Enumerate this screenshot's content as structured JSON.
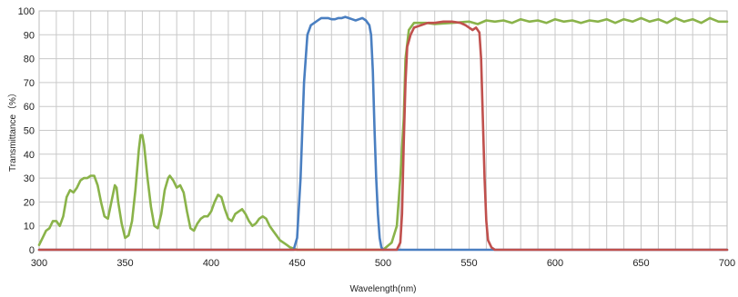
{
  "chart_data": {
    "type": "line",
    "xlabel": "Wavelength(nm)",
    "ylabel": "Transmittance（%）",
    "xlim": [
      300,
      700
    ],
    "ylim": [
      0,
      100
    ],
    "x_ticks": [
      300,
      350,
      400,
      450,
      500,
      550,
      600,
      650,
      700
    ],
    "y_ticks": [
      0,
      10,
      20,
      30,
      40,
      50,
      60,
      70,
      80,
      90,
      100
    ],
    "grid": true,
    "legend": "none",
    "series": [
      {
        "color": "#8ab34a",
        "points": [
          [
            300,
            2
          ],
          [
            302,
            5
          ],
          [
            304,
            8
          ],
          [
            306,
            9
          ],
          [
            308,
            12
          ],
          [
            310,
            12
          ],
          [
            312,
            10
          ],
          [
            314,
            14
          ],
          [
            316,
            22
          ],
          [
            318,
            25
          ],
          [
            320,
            24
          ],
          [
            322,
            26
          ],
          [
            324,
            29
          ],
          [
            326,
            30
          ],
          [
            328,
            30
          ],
          [
            330,
            31
          ],
          [
            332,
            31
          ],
          [
            334,
            27
          ],
          [
            336,
            20
          ],
          [
            338,
            14
          ],
          [
            340,
            13
          ],
          [
            342,
            20
          ],
          [
            344,
            27
          ],
          [
            345,
            26
          ],
          [
            346,
            20
          ],
          [
            348,
            11
          ],
          [
            350,
            5
          ],
          [
            352,
            6
          ],
          [
            354,
            12
          ],
          [
            356,
            25
          ],
          [
            358,
            42
          ],
          [
            359,
            48
          ],
          [
            360,
            48
          ],
          [
            361,
            44
          ],
          [
            363,
            30
          ],
          [
            365,
            18
          ],
          [
            367,
            10
          ],
          [
            369,
            9
          ],
          [
            371,
            15
          ],
          [
            373,
            25
          ],
          [
            375,
            30
          ],
          [
            376,
            31
          ],
          [
            378,
            29
          ],
          [
            380,
            26
          ],
          [
            382,
            27
          ],
          [
            384,
            24
          ],
          [
            386,
            16
          ],
          [
            388,
            9
          ],
          [
            390,
            8
          ],
          [
            392,
            11
          ],
          [
            394,
            13
          ],
          [
            396,
            14
          ],
          [
            398,
            14
          ],
          [
            400,
            16
          ],
          [
            402,
            20
          ],
          [
            404,
            23
          ],
          [
            406,
            22
          ],
          [
            408,
            17
          ],
          [
            410,
            13
          ],
          [
            412,
            12
          ],
          [
            414,
            15
          ],
          [
            416,
            16
          ],
          [
            418,
            17
          ],
          [
            420,
            15
          ],
          [
            422,
            12
          ],
          [
            424,
            10
          ],
          [
            426,
            11
          ],
          [
            428,
            13
          ],
          [
            430,
            14
          ],
          [
            432,
            13
          ],
          [
            434,
            10
          ],
          [
            436,
            8
          ],
          [
            438,
            6
          ],
          [
            440,
            4
          ],
          [
            442,
            3
          ],
          [
            444,
            2
          ],
          [
            446,
            1
          ],
          [
            448,
            0.5
          ],
          [
            450,
            0
          ],
          [
            500,
            0
          ],
          [
            505,
            3
          ],
          [
            508,
            10
          ],
          [
            510,
            30
          ],
          [
            512,
            55
          ],
          [
            513,
            80
          ],
          [
            515,
            92
          ],
          [
            518,
            95
          ],
          [
            525,
            95
          ],
          [
            530,
            94.5
          ],
          [
            540,
            95
          ],
          [
            550,
            95.5
          ],
          [
            555,
            94.5
          ],
          [
            560,
            96
          ],
          [
            565,
            95.5
          ],
          [
            570,
            96
          ],
          [
            575,
            95
          ],
          [
            580,
            96.5
          ],
          [
            585,
            95.5
          ],
          [
            590,
            96
          ],
          [
            595,
            95
          ],
          [
            600,
            96.5
          ],
          [
            605,
            95.5
          ],
          [
            610,
            96
          ],
          [
            615,
            95
          ],
          [
            620,
            96
          ],
          [
            625,
            95.5
          ],
          [
            630,
            96.5
          ],
          [
            635,
            95
          ],
          [
            640,
            96.5
          ],
          [
            645,
            95.5
          ],
          [
            650,
            97
          ],
          [
            655,
            95.5
          ],
          [
            660,
            96.5
          ],
          [
            665,
            95
          ],
          [
            670,
            97
          ],
          [
            675,
            95.5
          ],
          [
            680,
            96.5
          ],
          [
            685,
            95
          ],
          [
            690,
            97
          ],
          [
            695,
            95.5
          ],
          [
            700,
            95.5
          ]
        ]
      },
      {
        "color": "#4a7fc1",
        "points": [
          [
            300,
            0
          ],
          [
            448,
            0
          ],
          [
            450,
            5
          ],
          [
            452,
            30
          ],
          [
            454,
            70
          ],
          [
            456,
            90
          ],
          [
            458,
            94
          ],
          [
            460,
            95
          ],
          [
            462,
            96
          ],
          [
            464,
            97
          ],
          [
            466,
            97
          ],
          [
            468,
            97
          ],
          [
            470,
            96.5
          ],
          [
            472,
            96.5
          ],
          [
            474,
            97
          ],
          [
            476,
            97
          ],
          [
            478,
            97.5
          ],
          [
            480,
            97
          ],
          [
            482,
            96.5
          ],
          [
            484,
            96
          ],
          [
            486,
            96.5
          ],
          [
            488,
            97
          ],
          [
            490,
            96
          ],
          [
            492,
            94
          ],
          [
            493,
            90
          ],
          [
            494,
            75
          ],
          [
            495,
            50
          ],
          [
            496,
            30
          ],
          [
            497,
            15
          ],
          [
            498,
            5
          ],
          [
            499,
            1
          ],
          [
            500,
            0
          ],
          [
            700,
            0
          ]
        ]
      },
      {
        "color": "#c0504d",
        "points": [
          [
            300,
            0
          ],
          [
            508,
            0
          ],
          [
            510,
            3
          ],
          [
            511,
            15
          ],
          [
            512,
            45
          ],
          [
            513,
            70
          ],
          [
            514,
            85
          ],
          [
            516,
            90
          ],
          [
            518,
            93
          ],
          [
            522,
            94
          ],
          [
            526,
            95
          ],
          [
            530,
            95
          ],
          [
            535,
            95.5
          ],
          [
            540,
            95.5
          ],
          [
            545,
            95
          ],
          [
            548,
            94
          ],
          [
            550,
            93
          ],
          [
            552,
            92
          ],
          [
            554,
            93
          ],
          [
            556,
            91
          ],
          [
            557,
            80
          ],
          [
            558,
            55
          ],
          [
            559,
            30
          ],
          [
            560,
            12
          ],
          [
            561,
            4
          ],
          [
            563,
            1
          ],
          [
            565,
            0
          ],
          [
            700,
            0
          ]
        ]
      }
    ]
  }
}
